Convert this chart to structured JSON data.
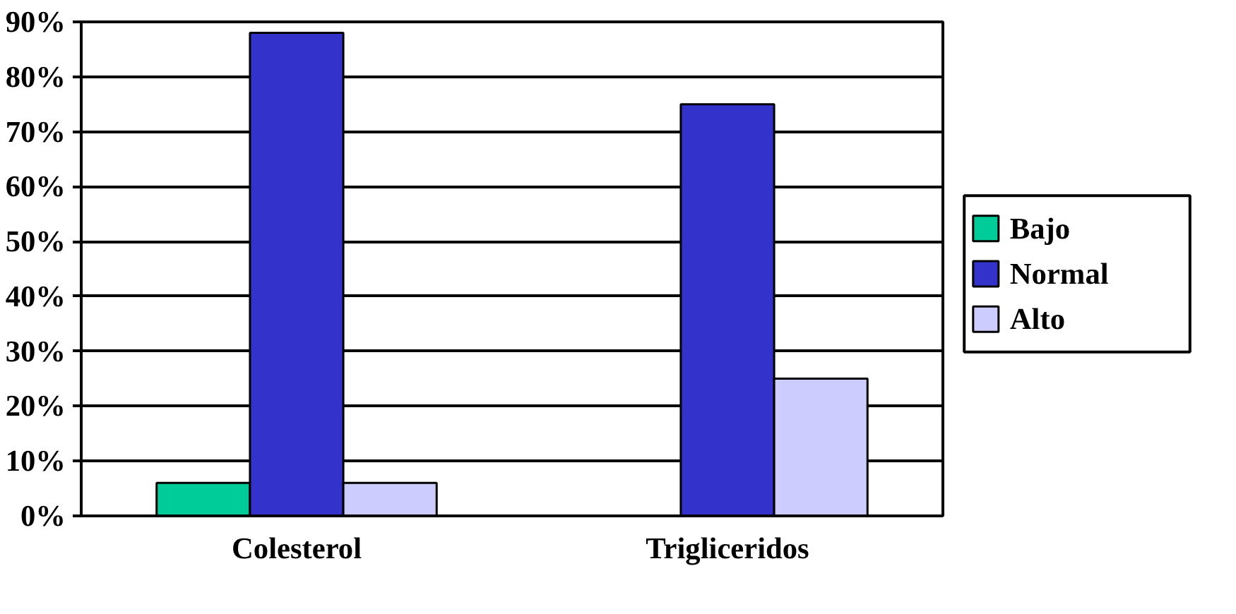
{
  "chart_data": {
    "type": "bar",
    "categories": [
      "Colesterol",
      "Trigliceridos"
    ],
    "series": [
      {
        "name": "Bajo",
        "color": "#00cc99",
        "values": [
          6,
          null
        ]
      },
      {
        "name": "Normal",
        "color": "#3333cc",
        "values": [
          88,
          75
        ]
      },
      {
        "name": "Alto",
        "color": "#ccccff",
        "values": [
          6,
          25
        ]
      }
    ],
    "ylim": [
      0,
      90
    ],
    "yticks": [
      {
        "value": 0,
        "label": "0%"
      },
      {
        "value": 10,
        "label": "10%"
      },
      {
        "value": 20,
        "label": "20%"
      },
      {
        "value": 30,
        "label": "30%"
      },
      {
        "value": 40,
        "label": "40%"
      },
      {
        "value": 50,
        "label": "50%"
      },
      {
        "value": 60,
        "label": "60%"
      },
      {
        "value": 70,
        "label": "70%"
      },
      {
        "value": 80,
        "label": "80%"
      },
      {
        "value": 90,
        "label": "90%"
      }
    ],
    "grid": "y",
    "legend": "right"
  }
}
